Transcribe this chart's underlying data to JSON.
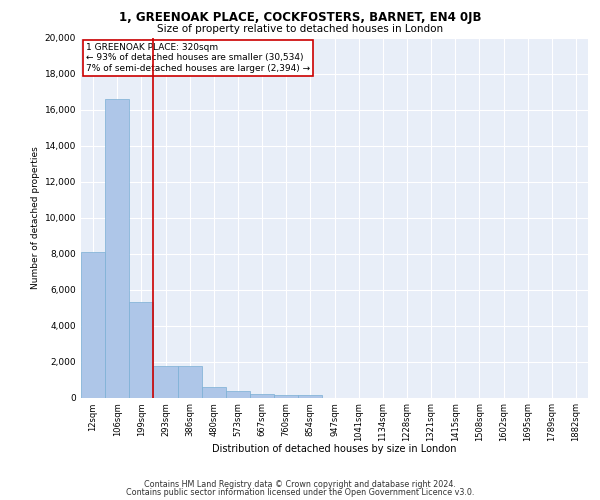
{
  "title_line1": "1, GREENOAK PLACE, COCKFOSTERS, BARNET, EN4 0JB",
  "title_line2": "Size of property relative to detached houses in London",
  "xlabel": "Distribution of detached houses by size in London",
  "ylabel": "Number of detached properties",
  "bar_labels": [
    "12sqm",
    "106sqm",
    "199sqm",
    "293sqm",
    "386sqm",
    "480sqm",
    "573sqm",
    "667sqm",
    "760sqm",
    "854sqm",
    "947sqm",
    "1041sqm",
    "1134sqm",
    "1228sqm",
    "1321sqm",
    "1415sqm",
    "1508sqm",
    "1602sqm",
    "1695sqm",
    "1789sqm",
    "1882sqm"
  ],
  "bar_values": [
    8100,
    16600,
    5300,
    1750,
    1750,
    600,
    350,
    200,
    150,
    130,
    0,
    0,
    0,
    0,
    0,
    0,
    0,
    0,
    0,
    0,
    0
  ],
  "bar_color": "#aec6e8",
  "bar_edge_color": "#7aafd4",
  "annotation_text": "1 GREENOAK PLACE: 320sqm\n← 93% of detached houses are smaller (30,534)\n7% of semi-detached houses are larger (2,394) →",
  "annotation_box_color": "#ffffff",
  "annotation_box_edge_color": "#cc0000",
  "vline_color": "#cc0000",
  "vline_x": 2.5,
  "ylim": [
    0,
    20000
  ],
  "yticks": [
    0,
    2000,
    4000,
    6000,
    8000,
    10000,
    12000,
    14000,
    16000,
    18000,
    20000
  ],
  "background_color": "#e8eef8",
  "grid_color": "#ffffff",
  "footer_line1": "Contains HM Land Registry data © Crown copyright and database right 2024.",
  "footer_line2": "Contains public sector information licensed under the Open Government Licence v3.0."
}
